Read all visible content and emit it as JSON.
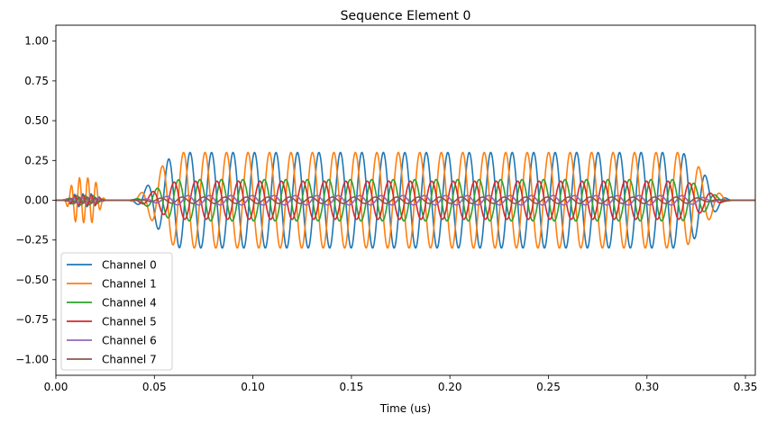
{
  "chart_data": {
    "type": "line",
    "title": "Sequence Element 0",
    "xlabel": "Time (us)",
    "ylabel": "",
    "xlim": [
      0.0,
      0.355
    ],
    "ylim": [
      -1.1,
      1.1
    ],
    "xticks": [
      0.0,
      0.05,
      0.1,
      0.15,
      0.2,
      0.25,
      0.3,
      0.35
    ],
    "xtick_labels": [
      "0.00",
      "0.05",
      "0.10",
      "0.15",
      "0.20",
      "0.25",
      "0.30",
      "0.35"
    ],
    "yticks": [
      1.0,
      0.75,
      0.5,
      0.25,
      0.0,
      -0.25,
      -0.5,
      -0.75,
      -1.0
    ],
    "ytick_labels": [
      "1.00",
      "0.75",
      "0.50",
      "0.25",
      "0.00",
      "−0.25",
      "−0.50",
      "−0.75",
      "−1.00"
    ],
    "grid": false,
    "legend_position": "lower-left",
    "signal": {
      "burst_start": 0.003,
      "burst_end": 0.026,
      "main_start": 0.036,
      "main_end": 0.344,
      "period": 0.0109
    },
    "series": [
      {
        "name": "Channel 0",
        "color": "#1f77b4",
        "amplitude": 0.3,
        "burst_amplitude": 0.04,
        "phase": 0.0
      },
      {
        "name": "Channel 1",
        "color": "#ff7f0e",
        "amplitude": 0.3,
        "burst_amplitude": 0.14,
        "phase": 1.9
      },
      {
        "name": "Channel 4",
        "color": "#2ca02c",
        "amplitude": 0.13,
        "burst_amplitude": 0.03,
        "phase": 3.4
      },
      {
        "name": "Channel 5",
        "color": "#d62728",
        "amplitude": 0.12,
        "burst_amplitude": 0.03,
        "phase": 4.7
      },
      {
        "name": "Channel 6",
        "color": "#9467bd",
        "amplitude": 0.03,
        "burst_amplitude": 0.02,
        "phase": 0.6
      },
      {
        "name": "Channel 7",
        "color": "#8c564b",
        "amplitude": 0.02,
        "burst_amplitude": 0.02,
        "phase": 2.3
      }
    ]
  }
}
